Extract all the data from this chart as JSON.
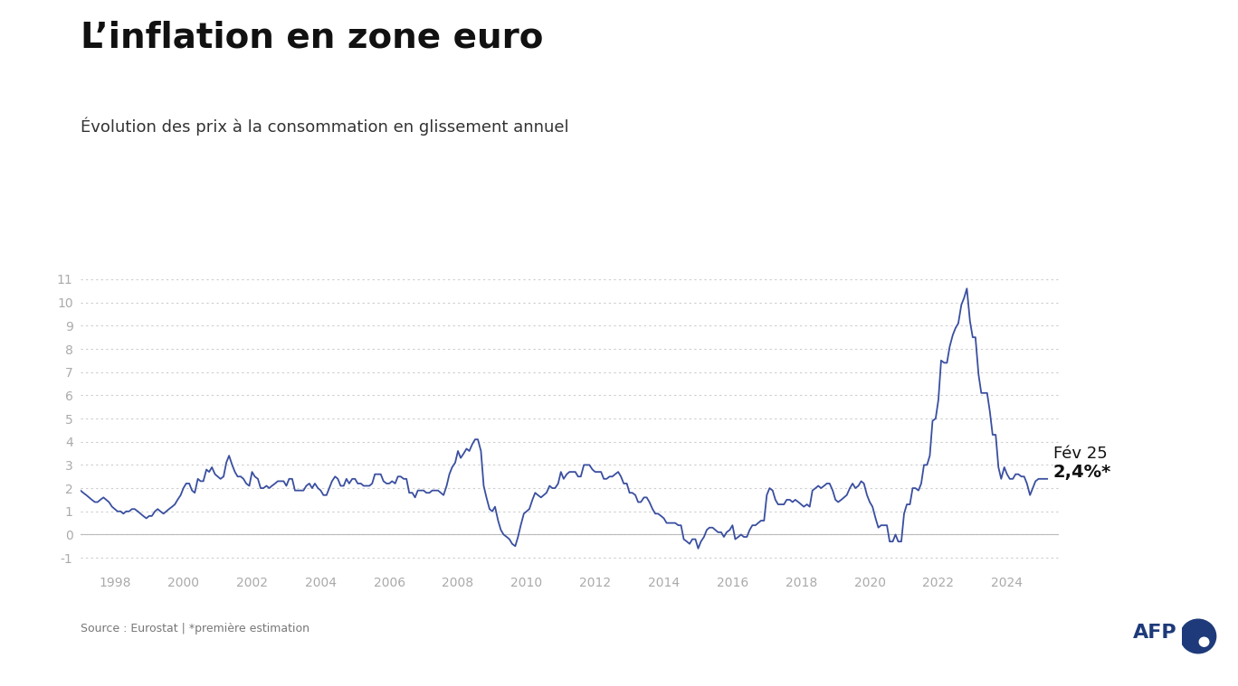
{
  "title": "L’inflation en zone euro",
  "subtitle": "Évolution des prix à la consommation en glissement annuel",
  "source": "Source : Eurostat | *première estimation",
  "annotation_line1": "Fév 25",
  "annotation_line2": "2,4%*",
  "line_color": "#3a4fa0",
  "background_color": "#ffffff",
  "ylim": [
    -1.5,
    11.8
  ],
  "yticks": [
    -1,
    0,
    1,
    2,
    3,
    4,
    5,
    6,
    7,
    8,
    9,
    10,
    11
  ],
  "xtick_years": [
    1998,
    2000,
    2002,
    2004,
    2006,
    2008,
    2010,
    2012,
    2014,
    2016,
    2018,
    2020,
    2022,
    2024
  ],
  "afp_color": "#1e3a7a",
  "tick_color": "#aaaaaa",
  "grid_color": "#cccccc",
  "data": {
    "dates": [
      1997.0,
      1997.08,
      1997.17,
      1997.25,
      1997.33,
      1997.42,
      1997.5,
      1997.58,
      1997.67,
      1997.75,
      1997.83,
      1997.92,
      1998.0,
      1998.08,
      1998.17,
      1998.25,
      1998.33,
      1998.42,
      1998.5,
      1998.58,
      1998.67,
      1998.75,
      1998.83,
      1998.92,
      1999.0,
      1999.08,
      1999.17,
      1999.25,
      1999.33,
      1999.42,
      1999.5,
      1999.58,
      1999.67,
      1999.75,
      1999.83,
      1999.92,
      2000.0,
      2000.08,
      2000.17,
      2000.25,
      2000.33,
      2000.42,
      2000.5,
      2000.58,
      2000.67,
      2000.75,
      2000.83,
      2000.92,
      2001.0,
      2001.08,
      2001.17,
      2001.25,
      2001.33,
      2001.42,
      2001.5,
      2001.58,
      2001.67,
      2001.75,
      2001.83,
      2001.92,
      2002.0,
      2002.08,
      2002.17,
      2002.25,
      2002.33,
      2002.42,
      2002.5,
      2002.58,
      2002.67,
      2002.75,
      2002.83,
      2002.92,
      2003.0,
      2003.08,
      2003.17,
      2003.25,
      2003.33,
      2003.42,
      2003.5,
      2003.58,
      2003.67,
      2003.75,
      2003.83,
      2003.92,
      2004.0,
      2004.08,
      2004.17,
      2004.25,
      2004.33,
      2004.42,
      2004.5,
      2004.58,
      2004.67,
      2004.75,
      2004.83,
      2004.92,
      2005.0,
      2005.08,
      2005.17,
      2005.25,
      2005.33,
      2005.42,
      2005.5,
      2005.58,
      2005.67,
      2005.75,
      2005.83,
      2005.92,
      2006.0,
      2006.08,
      2006.17,
      2006.25,
      2006.33,
      2006.42,
      2006.5,
      2006.58,
      2006.67,
      2006.75,
      2006.83,
      2006.92,
      2007.0,
      2007.08,
      2007.17,
      2007.25,
      2007.33,
      2007.42,
      2007.5,
      2007.58,
      2007.67,
      2007.75,
      2007.83,
      2007.92,
      2008.0,
      2008.08,
      2008.17,
      2008.25,
      2008.33,
      2008.42,
      2008.5,
      2008.58,
      2008.67,
      2008.75,
      2008.83,
      2008.92,
      2009.0,
      2009.08,
      2009.17,
      2009.25,
      2009.33,
      2009.42,
      2009.5,
      2009.58,
      2009.67,
      2009.75,
      2009.83,
      2009.92,
      2010.0,
      2010.08,
      2010.17,
      2010.25,
      2010.33,
      2010.42,
      2010.5,
      2010.58,
      2010.67,
      2010.75,
      2010.83,
      2010.92,
      2011.0,
      2011.08,
      2011.17,
      2011.25,
      2011.33,
      2011.42,
      2011.5,
      2011.58,
      2011.67,
      2011.75,
      2011.83,
      2011.92,
      2012.0,
      2012.08,
      2012.17,
      2012.25,
      2012.33,
      2012.42,
      2012.5,
      2012.58,
      2012.67,
      2012.75,
      2012.83,
      2012.92,
      2013.0,
      2013.08,
      2013.17,
      2013.25,
      2013.33,
      2013.42,
      2013.5,
      2013.58,
      2013.67,
      2013.75,
      2013.83,
      2013.92,
      2014.0,
      2014.08,
      2014.17,
      2014.25,
      2014.33,
      2014.42,
      2014.5,
      2014.58,
      2014.67,
      2014.75,
      2014.83,
      2014.92,
      2015.0,
      2015.08,
      2015.17,
      2015.25,
      2015.33,
      2015.42,
      2015.5,
      2015.58,
      2015.67,
      2015.75,
      2015.83,
      2015.92,
      2016.0,
      2016.08,
      2016.17,
      2016.25,
      2016.33,
      2016.42,
      2016.5,
      2016.58,
      2016.67,
      2016.75,
      2016.83,
      2016.92,
      2017.0,
      2017.08,
      2017.17,
      2017.25,
      2017.33,
      2017.42,
      2017.5,
      2017.58,
      2017.67,
      2017.75,
      2017.83,
      2017.92,
      2018.0,
      2018.08,
      2018.17,
      2018.25,
      2018.33,
      2018.42,
      2018.5,
      2018.58,
      2018.67,
      2018.75,
      2018.83,
      2018.92,
      2019.0,
      2019.08,
      2019.17,
      2019.25,
      2019.33,
      2019.42,
      2019.5,
      2019.58,
      2019.67,
      2019.75,
      2019.83,
      2019.92,
      2020.0,
      2020.08,
      2020.17,
      2020.25,
      2020.33,
      2020.42,
      2020.5,
      2020.58,
      2020.67,
      2020.75,
      2020.83,
      2020.92,
      2021.0,
      2021.08,
      2021.17,
      2021.25,
      2021.33,
      2021.42,
      2021.5,
      2021.58,
      2021.67,
      2021.75,
      2021.83,
      2021.92,
      2022.0,
      2022.08,
      2022.17,
      2022.25,
      2022.33,
      2022.42,
      2022.5,
      2022.58,
      2022.67,
      2022.75,
      2022.83,
      2022.92,
      2023.0,
      2023.08,
      2023.17,
      2023.25,
      2023.33,
      2023.42,
      2023.5,
      2023.58,
      2023.67,
      2023.75,
      2023.83,
      2023.92,
      2024.0,
      2024.08,
      2024.17,
      2024.25,
      2024.33,
      2024.42,
      2024.5,
      2024.58,
      2024.67,
      2024.75,
      2024.83,
      2024.92,
      2025.0,
      2025.17
    ],
    "values": [
      1.9,
      1.8,
      1.7,
      1.6,
      1.5,
      1.4,
      1.4,
      1.5,
      1.6,
      1.5,
      1.4,
      1.2,
      1.1,
      1.0,
      1.0,
      0.9,
      1.0,
      1.0,
      1.1,
      1.1,
      1.0,
      0.9,
      0.8,
      0.7,
      0.8,
      0.8,
      1.0,
      1.1,
      1.0,
      0.9,
      1.0,
      1.1,
      1.2,
      1.3,
      1.5,
      1.7,
      2.0,
      2.2,
      2.2,
      1.9,
      1.8,
      2.4,
      2.3,
      2.3,
      2.8,
      2.7,
      2.9,
      2.6,
      2.5,
      2.4,
      2.5,
      3.1,
      3.4,
      3.0,
      2.7,
      2.5,
      2.5,
      2.4,
      2.2,
      2.1,
      2.7,
      2.5,
      2.4,
      2.0,
      2.0,
      2.1,
      2.0,
      2.1,
      2.2,
      2.3,
      2.3,
      2.3,
      2.1,
      2.4,
      2.4,
      1.9,
      1.9,
      1.9,
      1.9,
      2.1,
      2.2,
      2.0,
      2.2,
      2.0,
      1.9,
      1.7,
      1.7,
      2.0,
      2.3,
      2.5,
      2.4,
      2.1,
      2.1,
      2.4,
      2.2,
      2.4,
      2.4,
      2.2,
      2.2,
      2.1,
      2.1,
      2.1,
      2.2,
      2.6,
      2.6,
      2.6,
      2.3,
      2.2,
      2.2,
      2.3,
      2.2,
      2.5,
      2.5,
      2.4,
      2.4,
      1.8,
      1.8,
      1.6,
      1.9,
      1.9,
      1.9,
      1.8,
      1.8,
      1.9,
      1.9,
      1.9,
      1.8,
      1.7,
      2.1,
      2.6,
      2.9,
      3.1,
      3.6,
      3.3,
      3.5,
      3.7,
      3.6,
      3.9,
      4.1,
      4.1,
      3.6,
      2.1,
      1.6,
      1.1,
      1.0,
      1.2,
      0.6,
      0.2,
      0.0,
      -0.1,
      -0.2,
      -0.4,
      -0.5,
      -0.1,
      0.4,
      0.9,
      1.0,
      1.1,
      1.5,
      1.8,
      1.7,
      1.6,
      1.7,
      1.8,
      2.1,
      2.0,
      2.0,
      2.2,
      2.7,
      2.4,
      2.6,
      2.7,
      2.7,
      2.7,
      2.5,
      2.5,
      3.0,
      3.0,
      3.0,
      2.8,
      2.7,
      2.7,
      2.7,
      2.4,
      2.4,
      2.5,
      2.5,
      2.6,
      2.7,
      2.5,
      2.2,
      2.2,
      1.8,
      1.8,
      1.7,
      1.4,
      1.4,
      1.6,
      1.6,
      1.4,
      1.1,
      0.9,
      0.9,
      0.8,
      0.7,
      0.5,
      0.5,
      0.5,
      0.5,
      0.4,
      0.4,
      -0.2,
      -0.3,
      -0.4,
      -0.2,
      -0.2,
      -0.6,
      -0.3,
      -0.1,
      0.2,
      0.3,
      0.3,
      0.2,
      0.1,
      0.1,
      -0.1,
      0.1,
      0.2,
      0.4,
      -0.2,
      -0.1,
      0.0,
      -0.1,
      -0.1,
      0.2,
      0.4,
      0.4,
      0.5,
      0.6,
      0.6,
      1.7,
      2.0,
      1.9,
      1.5,
      1.3,
      1.3,
      1.3,
      1.5,
      1.5,
      1.4,
      1.5,
      1.4,
      1.3,
      1.2,
      1.3,
      1.2,
      1.9,
      2.0,
      2.1,
      2.0,
      2.1,
      2.2,
      2.2,
      1.9,
      1.5,
      1.4,
      1.5,
      1.6,
      1.7,
      2.0,
      2.2,
      2.0,
      2.1,
      2.3,
      2.2,
      1.7,
      1.4,
      1.2,
      0.7,
      0.3,
      0.4,
      0.4,
      0.4,
      -0.3,
      -0.3,
      0.0,
      -0.3,
      -0.3,
      0.9,
      1.3,
      1.3,
      2.0,
      2.0,
      1.9,
      2.2,
      3.0,
      3.0,
      3.4,
      4.9,
      5.0,
      5.8,
      7.5,
      7.4,
      7.4,
      8.1,
      8.6,
      8.9,
      9.1,
      9.9,
      10.2,
      10.6,
      9.2,
      8.5,
      8.5,
      6.9,
      6.1,
      6.1,
      6.1,
      5.3,
      4.3,
      4.3,
      2.9,
      2.4,
      2.9,
      2.6,
      2.4,
      2.4,
      2.6,
      2.6,
      2.5,
      2.5,
      2.2,
      1.7,
      2.0,
      2.3,
      2.4,
      2.4,
      2.4
    ]
  }
}
